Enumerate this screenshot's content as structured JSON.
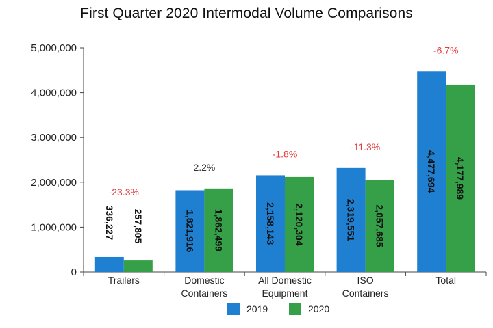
{
  "chart_data": {
    "type": "bar",
    "title": "First Quarter 2020 Intermodal Volume Comparisons",
    "categories": [
      "Trailers",
      "Domestic\nContainers",
      "All Domestic\nEquipment",
      "ISO\nContainers",
      "Total"
    ],
    "series": [
      {
        "name": "2019",
        "values": [
          336227,
          1821916,
          2158143,
          2319551,
          4477694
        ],
        "labels": [
          "336,227",
          "1,821,916",
          "2,158,143",
          "2,319,551",
          "4,477,694"
        ],
        "color": "#1f7fd0"
      },
      {
        "name": "2020",
        "values": [
          257805,
          1862499,
          2120304,
          2057685,
          4177989
        ],
        "labels": [
          "257,805",
          "1,862,499",
          "2,120,304",
          "2,057,685",
          "4,177,989"
        ],
        "color": "#36a048"
      }
    ],
    "pct_change": [
      "-23.3%",
      "2.2%",
      "-1.8%",
      "-11.3%",
      "-6.7%"
    ],
    "pct_colors": [
      "#e03c3c",
      "#333333",
      "#e03c3c",
      "#e03c3c",
      "#e03c3c"
    ],
    "ylim": [
      0,
      5000000
    ],
    "yticks": [
      0,
      1000000,
      2000000,
      3000000,
      4000000,
      5000000
    ],
    "ytick_labels": [
      "0",
      "1,000,000",
      "2,000,000",
      "3,000,000",
      "4,000,000",
      "5,000,000"
    ],
    "xlabel": "",
    "ylabel": "",
    "legend_position": "bottom",
    "grid": false
  }
}
